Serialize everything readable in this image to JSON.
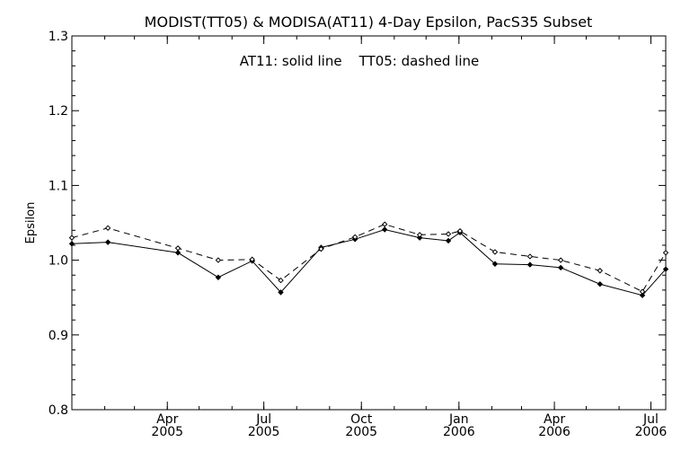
{
  "chart_data": {
    "type": "line",
    "title": "MODIST(TT05) & MODISA(AT11) 4-Day Epsilon, PacS35 Subset",
    "annotation": "AT11: solid line    TT05: dashed line",
    "xlabel": "",
    "ylabel": "Epsilon",
    "xlim": [
      "2005-01-01",
      "2006-07-15"
    ],
    "ylim": [
      0.8,
      1.3
    ],
    "y_ticks": [
      "0.8",
      "0.9",
      "1.0",
      "1.1",
      "1.2",
      "1.3"
    ],
    "x_ticks": [
      {
        "date": "2005-04-01",
        "month": "Apr",
        "year": "2005"
      },
      {
        "date": "2005-07-01",
        "month": "Jul",
        "year": "2005"
      },
      {
        "date": "2005-10-01",
        "month": "Oct",
        "year": "2005"
      },
      {
        "date": "2006-01-01",
        "month": "Jan",
        "year": "2006"
      },
      {
        "date": "2006-04-01",
        "month": "Apr",
        "year": "2006"
      },
      {
        "date": "2006-07-01",
        "month": "Jul",
        "year": "2006"
      }
    ],
    "grid": false,
    "series": [
      {
        "name": "AT11",
        "style": "solid",
        "color": "#000000",
        "points": [
          [
            "2005-01-01",
            1.022
          ],
          [
            "2005-02-04",
            1.024
          ],
          [
            "2005-04-11",
            1.01
          ],
          [
            "2005-05-19",
            0.977
          ],
          [
            "2005-06-20",
            0.999
          ],
          [
            "2005-07-17",
            0.957
          ],
          [
            "2005-08-24",
            1.017
          ],
          [
            "2005-09-25",
            1.028
          ],
          [
            "2005-10-23",
            1.041
          ],
          [
            "2005-11-25",
            1.03
          ],
          [
            "2005-12-22",
            1.026
          ],
          [
            "2006-01-02",
            1.037
          ],
          [
            "2006-02-04",
            0.995
          ],
          [
            "2006-03-09",
            0.994
          ],
          [
            "2006-04-07",
            0.99
          ],
          [
            "2006-05-14",
            0.968
          ],
          [
            "2006-06-23",
            0.953
          ],
          [
            "2006-07-15",
            0.988
          ]
        ]
      },
      {
        "name": "TT05",
        "style": "dashed",
        "color": "#000000",
        "points": [
          [
            "2005-01-01",
            1.03
          ],
          [
            "2005-02-04",
            1.043
          ],
          [
            "2005-04-11",
            1.016
          ],
          [
            "2005-05-19",
            1.0
          ],
          [
            "2005-06-20",
            1.001
          ],
          [
            "2005-07-17",
            0.973
          ],
          [
            "2005-08-24",
            1.015
          ],
          [
            "2005-09-25",
            1.031
          ],
          [
            "2005-10-23",
            1.048
          ],
          [
            "2005-11-25",
            1.034
          ],
          [
            "2005-12-22",
            1.035
          ],
          [
            "2006-01-02",
            1.039
          ],
          [
            "2006-02-04",
            1.011
          ],
          [
            "2006-03-09",
            1.005
          ],
          [
            "2006-04-07",
            1.0
          ],
          [
            "2006-05-14",
            0.986
          ],
          [
            "2006-06-23",
            0.958
          ],
          [
            "2006-07-15",
            1.01
          ]
        ]
      }
    ]
  }
}
